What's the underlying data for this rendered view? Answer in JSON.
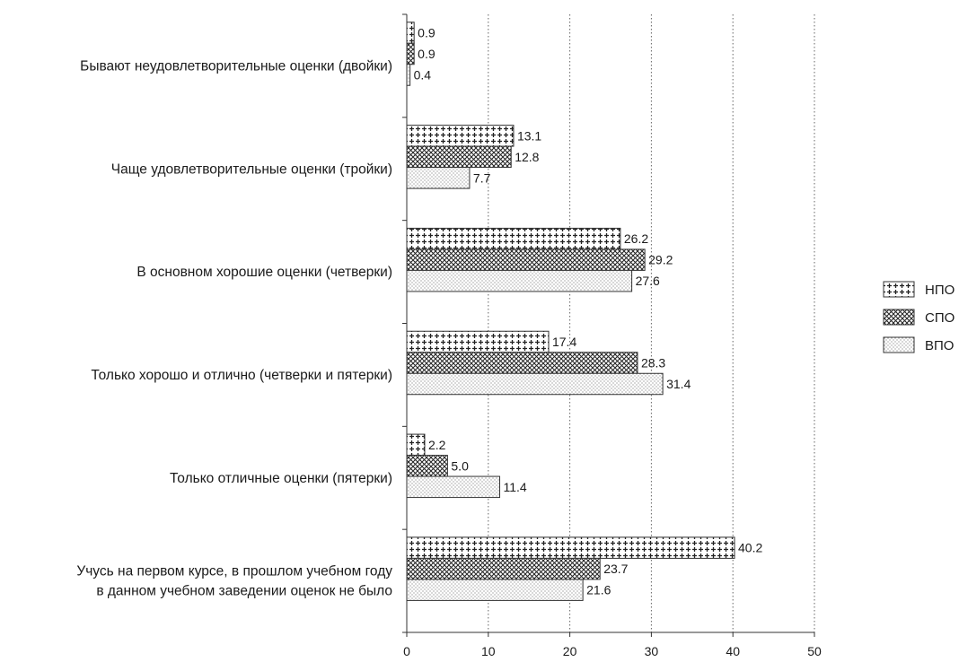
{
  "chart_data": {
    "type": "bar",
    "orientation": "horizontal",
    "categories": [
      [
        "Бывают неудовлетворительные оценки (двойки)"
      ],
      [
        "Чаще удовлетворительные оценки (тройки)"
      ],
      [
        "В основном хорошие оценки (четверки)"
      ],
      [
        "Только хорошо и отлично (четверки и пятерки)"
      ],
      [
        "Только отличные оценки (пятерки)"
      ],
      [
        "Учусь на первом курсе, в прошлом учебном году",
        "в данном учебном заведении оценок не было"
      ]
    ],
    "series": [
      {
        "name": "НПО",
        "pattern": "plus-crosses",
        "values": [
          0.9,
          13.1,
          26.2,
          17.4,
          2.2,
          40.2
        ]
      },
      {
        "name": "СПО",
        "pattern": "crosshatch",
        "values": [
          0.9,
          12.8,
          29.2,
          28.3,
          5.0,
          23.7
        ]
      },
      {
        "name": "ВПО",
        "pattern": "dots",
        "values": [
          0.4,
          7.7,
          27.6,
          31.4,
          11.4,
          21.6
        ]
      }
    ],
    "value_labels": [
      [
        "0.9",
        "13.1",
        "26.2",
        "17.4",
        "2.2",
        "40.2"
      ],
      [
        "0.9",
        "12.8",
        "29.2",
        "28.3",
        "5.0",
        "23.7"
      ],
      [
        "0.4",
        "7.7",
        "27.6",
        "31.4",
        "11.4",
        "21.6"
      ]
    ],
    "xlim": [
      0,
      50
    ],
    "xticks": [
      "0",
      "10",
      "20",
      "30",
      "40",
      "50"
    ],
    "xtick_values": [
      0,
      10,
      20,
      30,
      40,
      50
    ],
    "grid": "vertical dotted",
    "legend_position": "right",
    "title": "",
    "xlabel": "",
    "ylabel": "",
    "colors": {
      "bar_stroke": "#333333",
      "ink": "#1a1a1a",
      "grid": "#666666"
    }
  }
}
